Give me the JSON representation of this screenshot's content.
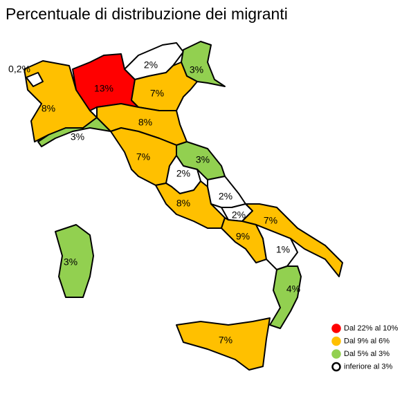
{
  "title": "Percentuale di distribuzione dei migranti",
  "legend": [
    {
      "label": "Dal 22% al 10%",
      "color": "#ff0000"
    },
    {
      "label": "Dal 9% al 6%",
      "color": "#ffc000"
    },
    {
      "label": "Dal 5% al 3%",
      "color": "#92d050"
    },
    {
      "label": "inferiore al 3%",
      "color": "#ffffff"
    }
  ],
  "regions": [
    {
      "label": "8%",
      "category": 1
    },
    {
      "label": "0,2%",
      "category": 3
    },
    {
      "label": "13%",
      "category": 0
    },
    {
      "label": "2%",
      "category": 3
    },
    {
      "label": "3%",
      "category": 2
    },
    {
      "label": "7%",
      "category": 1
    },
    {
      "label": "3%",
      "category": 2
    },
    {
      "label": "8%",
      "category": 1
    },
    {
      "label": "7%",
      "category": 1
    },
    {
      "label": "3%",
      "category": 2
    },
    {
      "label": "2%",
      "category": 3
    },
    {
      "label": "8%",
      "category": 1
    },
    {
      "label": "2%",
      "category": 3
    },
    {
      "label": "2%",
      "category": 3
    },
    {
      "label": "7%",
      "category": 1
    },
    {
      "label": "9%",
      "category": 1
    },
    {
      "label": "1%",
      "category": 3
    },
    {
      "label": "4%",
      "category": 2
    },
    {
      "label": "7%",
      "category": 1
    },
    {
      "label": "3%",
      "category": 2
    }
  ]
}
